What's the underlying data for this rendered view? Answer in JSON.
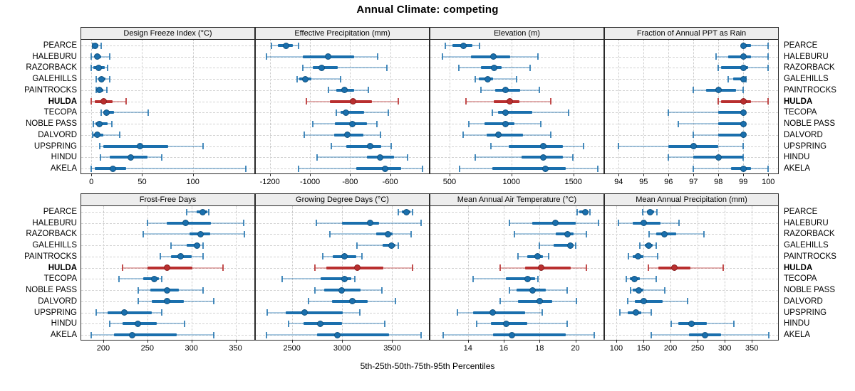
{
  "title": "Annual Climate: competing",
  "caption": "5th-25th-50th-75th-95th Percentiles",
  "colors": {
    "series": "#1a6fad",
    "series_light": "rgba(26,111,173,0.38)",
    "series_cap": "rgba(26,111,173,0.8)",
    "series_dot_edge": "#11527f",
    "highlight": "#b92f2f",
    "highlight_light": "rgba(185,47,47,0.38)",
    "highlight_cap": "rgba(185,47,47,0.85)",
    "highlight_dot_edge": "#8c2020",
    "strip_bg": "#ededed",
    "panel_border": "#2a2a2a",
    "grid": "#c9c9c9"
  },
  "chart_data": {
    "type": "dotplot-percentile-intervals",
    "percentiles": [
      5,
      25,
      50,
      75,
      95
    ],
    "highlight_site": "HULDA",
    "sites": [
      "PEARCE",
      "HALEBURU",
      "RAZORBACK",
      "GALEHILLS",
      "PAINTROCKS",
      "HULDA",
      "TECOPA",
      "NOBLE PASS",
      "DALVORD",
      "UPSPRING",
      "HINDU",
      "AKELA"
    ],
    "legend_position": "none",
    "grid": "dotted",
    "panels": [
      {
        "title": "Design Freeze Index (°C)",
        "row": 0,
        "col": 0,
        "xlim": [
          -10,
          162
        ],
        "ticks": [
          0,
          50,
          100
        ],
        "values": [
          [
            1,
            2,
            4,
            7,
            10
          ],
          [
            0,
            3,
            6,
            10,
            18
          ],
          [
            0,
            2,
            7,
            13,
            16
          ],
          [
            5,
            7,
            10,
            14,
            18
          ],
          [
            5,
            6,
            8,
            12,
            15
          ],
          [
            0,
            3,
            12,
            21,
            34
          ],
          [
            10,
            12,
            15,
            22,
            56
          ],
          [
            2,
            4,
            8,
            16,
            20
          ],
          [
            1,
            2,
            6,
            12,
            28
          ],
          [
            8,
            12,
            48,
            76,
            110
          ],
          [
            9,
            18,
            39,
            55,
            69
          ],
          [
            0,
            3,
            21,
            34,
            152
          ]
        ]
      },
      {
        "title": "Effective Precipitation (mm)",
        "row": 0,
        "col": 1,
        "xlim": [
          -1270,
          -400
        ],
        "ticks": [
          -1200,
          -1000,
          -800,
          -600
        ],
        "values": [
          [
            -1192,
            -1161,
            -1120,
            -1085,
            -1058
          ],
          [
            -1216,
            -1035,
            -908,
            -780,
            -664
          ],
          [
            -1036,
            -985,
            -943,
            -862,
            -616
          ],
          [
            -1064,
            -1052,
            -1024,
            -994,
            -848
          ],
          [
            -907,
            -870,
            -828,
            -780,
            -710
          ],
          [
            -1018,
            -901,
            -785,
            -691,
            -561
          ],
          [
            -868,
            -848,
            -820,
            -730,
            -611
          ],
          [
            -985,
            -875,
            -790,
            -715,
            -665
          ],
          [
            -1030,
            -880,
            -815,
            -735,
            -650
          ],
          [
            -895,
            -820,
            -700,
            -645,
            -595
          ],
          [
            -965,
            -715,
            -650,
            -580,
            -515
          ],
          [
            -1058,
            -770,
            -625,
            -545,
            -440
          ]
        ]
      },
      {
        "title": "Elevation (m)",
        "row": 0,
        "col": 2,
        "xlim": [
          345,
          1755
        ],
        "ticks": [
          500,
          1000,
          1500
        ],
        "values": [
          [
            465,
            525,
            610,
            685,
            740
          ],
          [
            440,
            675,
            855,
            990,
            1215
          ],
          [
            575,
            755,
            860,
            920,
            1150
          ],
          [
            705,
            735,
            810,
            850,
            1040
          ],
          [
            755,
            870,
            955,
            1070,
            1225
          ],
          [
            635,
            860,
            985,
            1065,
            1315
          ],
          [
            845,
            890,
            955,
            1170,
            1460
          ],
          [
            655,
            785,
            950,
            1025,
            1235
          ],
          [
            610,
            800,
            895,
            1095,
            1315
          ],
          [
            835,
            980,
            1255,
            1415,
            1585
          ],
          [
            705,
            1080,
            1255,
            1415,
            1495
          ],
          [
            580,
            845,
            1275,
            1440,
            1700
          ]
        ]
      },
      {
        "title": "Fraction of Annual PPT as Rain",
        "row": 0,
        "col": 3,
        "xlim": [
          93.45,
          100.45
        ],
        "ticks": [
          94,
          95,
          96,
          97,
          98,
          99,
          100
        ],
        "values": [
          [
            99,
            99,
            99,
            99.3,
            100
          ],
          [
            97.9,
            98.4,
            99,
            99.3,
            100
          ],
          [
            98,
            98.1,
            99,
            99.2,
            100
          ],
          [
            98.4,
            98.6,
            99,
            99,
            99.1
          ],
          [
            97,
            97.5,
            98,
            98.7,
            99
          ],
          [
            98,
            98.1,
            99,
            99.3,
            100
          ],
          [
            96,
            98,
            99,
            99,
            99
          ],
          [
            96.4,
            98,
            99,
            99,
            99
          ],
          [
            97,
            98,
            99,
            99,
            99
          ],
          [
            94,
            96,
            97,
            98,
            99
          ],
          [
            96,
            97,
            98,
            99,
            99
          ],
          [
            97,
            98.5,
            99,
            99.3,
            100
          ]
        ]
      },
      {
        "title": "Frost-Free Days",
        "row": 1,
        "col": 0,
        "xlim": [
          175,
          373
        ],
        "ticks": [
          200,
          250,
          300,
          350
        ],
        "values": [
          [
            295,
            306,
            313,
            318,
            320
          ],
          [
            250,
            272,
            293,
            322,
            359
          ],
          [
            245,
            298,
            310,
            321,
            360
          ],
          [
            277,
            295,
            306,
            310,
            313
          ],
          [
            265,
            277,
            288,
            300,
            313
          ],
          [
            222,
            250,
            272,
            301,
            336
          ],
          [
            218,
            245,
            258,
            263,
            266
          ],
          [
            240,
            253,
            272,
            286,
            313
          ],
          [
            240,
            255,
            272,
            291,
            325
          ],
          [
            192,
            205,
            224,
            255,
            266
          ],
          [
            207,
            222,
            239,
            261,
            292
          ],
          [
            186,
            212,
            233,
            283,
            325
          ]
        ]
      },
      {
        "title": "Growing Degree Days (°C)",
        "row": 1,
        "col": 1,
        "xlim": [
          2140,
          3880
        ],
        "ticks": [
          2500,
          3000,
          3500
        ],
        "values": [
          [
            3560,
            3595,
            3640,
            3680,
            3700
          ],
          [
            2745,
            3000,
            3280,
            3370,
            3785
          ],
          [
            2880,
            3340,
            3460,
            3505,
            3685
          ],
          [
            3150,
            3405,
            3495,
            3535,
            3560
          ],
          [
            2810,
            2905,
            3025,
            3140,
            3200
          ],
          [
            2733,
            2840,
            3155,
            3410,
            3700
          ],
          [
            2400,
            2785,
            3025,
            3090,
            3125
          ],
          [
            2733,
            2820,
            2995,
            3185,
            3400
          ],
          [
            2667,
            2900,
            3100,
            3255,
            3530
          ],
          [
            2257,
            2435,
            2630,
            3005,
            3175
          ],
          [
            2470,
            2615,
            2785,
            3000,
            3425
          ],
          [
            2250,
            2750,
            2950,
            3465,
            3785
          ]
        ]
      },
      {
        "title": "Mean Annual Air Temperature (°C)",
        "row": 1,
        "col": 2,
        "xlim": [
          11.9,
          21.65
        ],
        "ticks": [
          14,
          16,
          18,
          20
        ],
        "values": [
          [
            20.1,
            20.2,
            20.55,
            20.7,
            20.8
          ],
          [
            16.3,
            17.6,
            18.9,
            20.0,
            21.3
          ],
          [
            16.6,
            18.9,
            19.55,
            19.9,
            20.6
          ],
          [
            18.0,
            18.8,
            19.7,
            19.9,
            20.0
          ],
          [
            16.8,
            17.3,
            17.9,
            18.2,
            18.5
          ],
          [
            15.8,
            17.2,
            18.1,
            19.75,
            20.6
          ],
          [
            14.3,
            16.1,
            17.35,
            17.75,
            17.9
          ],
          [
            16.3,
            16.7,
            17.6,
            18.35,
            19.55
          ],
          [
            15.8,
            16.8,
            18.0,
            18.7,
            20.05
          ],
          [
            13.4,
            14.3,
            15.4,
            17.2,
            18.15
          ],
          [
            14.5,
            15.3,
            16.15,
            17.3,
            19.55
          ],
          [
            12.6,
            15.4,
            16.45,
            19.45,
            21.05
          ]
        ]
      },
      {
        "title": "Mean Annual Precipitation (mm)",
        "row": 1,
        "col": 3,
        "xlim": [
          79,
          401
        ],
        "ticks": [
          100,
          150,
          200,
          250,
          300,
          350
        ],
        "values": [
          [
            149,
            156,
            163,
            170,
            175
          ],
          [
            104,
            130,
            151,
            181,
            216
          ],
          [
            160,
            174,
            189,
            210,
            262
          ],
          [
            144,
            153,
            160,
            167,
            173
          ],
          [
            122,
            130,
            140,
            150,
            176
          ],
          [
            159,
            177,
            207,
            237,
            297
          ],
          [
            118,
            125,
            133,
            143,
            174
          ],
          [
            126,
            130,
            141,
            150,
            190
          ],
          [
            121,
            134,
            150,
            186,
            231
          ],
          [
            106,
            121,
            136,
            146,
            164
          ],
          [
            201,
            215,
            239,
            267,
            317
          ],
          [
            164,
            234,
            264,
            293,
            381
          ]
        ]
      }
    ]
  }
}
